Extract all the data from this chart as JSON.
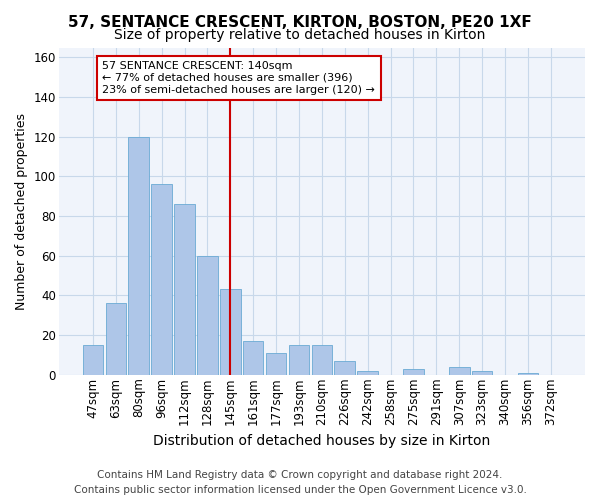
{
  "title": "57, SENTANCE CRESCENT, KIRTON, BOSTON, PE20 1XF",
  "subtitle": "Size of property relative to detached houses in Kirton",
  "xlabel": "Distribution of detached houses by size in Kirton",
  "ylabel": "Number of detached properties",
  "categories": [
    "47sqm",
    "63sqm",
    "80sqm",
    "96sqm",
    "112sqm",
    "128sqm",
    "145sqm",
    "161sqm",
    "177sqm",
    "193sqm",
    "210sqm",
    "226sqm",
    "242sqm",
    "258sqm",
    "275sqm",
    "291sqm",
    "307sqm",
    "323sqm",
    "340sqm",
    "356sqm",
    "372sqm"
  ],
  "values": [
    15,
    36,
    120,
    96,
    86,
    60,
    43,
    17,
    11,
    15,
    15,
    7,
    2,
    0,
    3,
    0,
    4,
    2,
    0,
    1,
    0
  ],
  "bar_color": "#aec6e8",
  "bar_edgecolor": "#6aaad4",
  "vline_x": 6,
  "vline_color": "#cc0000",
  "annotation_text": "57 SENTANCE CRESCENT: 140sqm\n← 77% of detached houses are smaller (396)\n23% of semi-detached houses are larger (120) →",
  "ylim": [
    0,
    165
  ],
  "grid_color": "#c8d8ea",
  "bg_color": "#ffffff",
  "plot_bg_color": "#f0f4fb",
  "footer_line1": "Contains HM Land Registry data © Crown copyright and database right 2024.",
  "footer_line2": "Contains public sector information licensed under the Open Government Licence v3.0.",
  "title_fontsize": 11,
  "subtitle_fontsize": 10,
  "xlabel_fontsize": 10,
  "ylabel_fontsize": 9,
  "tick_fontsize": 8.5,
  "footer_fontsize": 7.5
}
